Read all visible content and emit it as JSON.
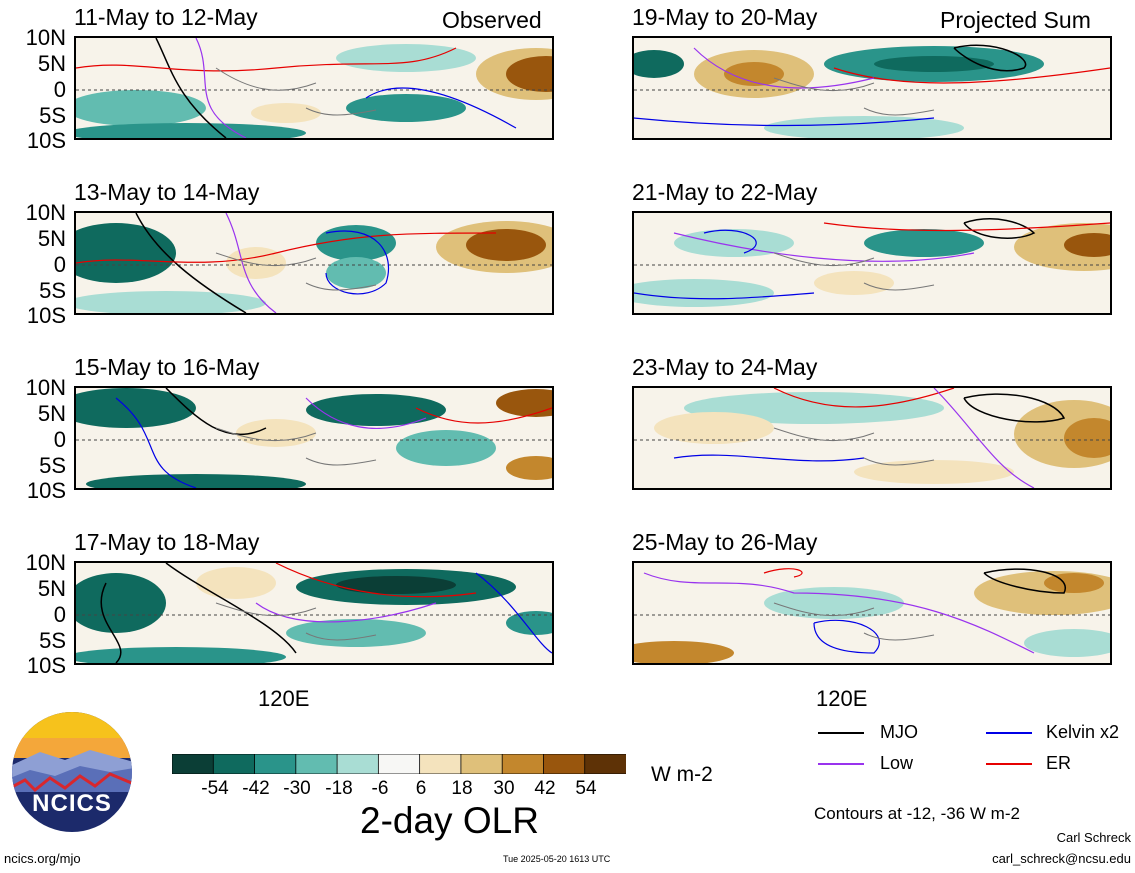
{
  "chart_data": {
    "type": "heatmap",
    "title": "2-day OLR",
    "units": "W m-2",
    "lat_ticks": [
      "10N",
      "5N",
      "0",
      "5S",
      "10S"
    ],
    "lon_ticks": [
      "120E"
    ],
    "colorbar": {
      "ticks": [
        "-54",
        "-42",
        "-30",
        "-18",
        "-6",
        "6",
        "18",
        "30",
        "42",
        "54"
      ],
      "colors": [
        "#0b3e36",
        "#0f6a5e",
        "#2a948a",
        "#62bcb0",
        "#a9ddd4",
        "#f7f7f5",
        "#f4e3bd",
        "#dfc07a",
        "#c3872d",
        "#99560d",
        "#5e3206"
      ]
    },
    "observed_label": "Observed",
    "projected_label": "Projected Sum",
    "observed_panels": [
      "11-May to 12-May",
      "13-May to 14-May",
      "15-May to 16-May",
      "17-May to 18-May"
    ],
    "projected_panels": [
      "19-May to 20-May",
      "21-May to 22-May",
      "23-May to 24-May",
      "25-May to 26-May"
    ],
    "contours_note": "Contours at -12, -36 W m-2",
    "legend": [
      {
        "name": "MJO",
        "color": "#000000"
      },
      {
        "name": "Kelvin x2",
        "color": "#0000e6"
      },
      {
        "name": "Low",
        "color": "#9933ee"
      },
      {
        "name": "ER",
        "color": "#e60000"
      }
    ]
  },
  "logo_text": "NCICS",
  "footer": {
    "url": "ncics.org/mjo",
    "timestamp": "Tue 2025-05-20 1613 UTC",
    "author": "Carl Schreck",
    "email": "carl_schreck@ncsu.edu"
  }
}
